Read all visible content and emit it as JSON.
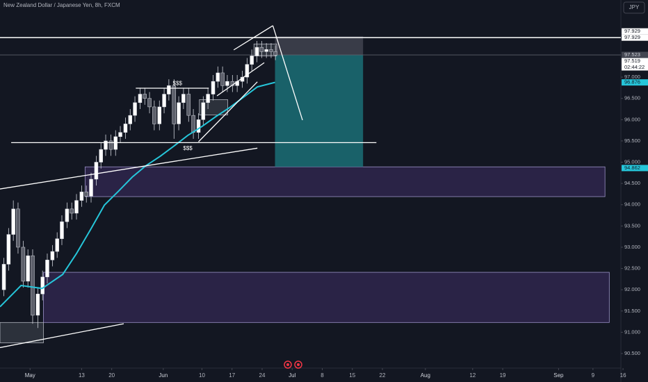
{
  "chart_data": {
    "type": "candlestick",
    "title": "New Zealand Dollar / Japanese Yen, 8h, FXCM",
    "currency_button": "JPY",
    "xlim": [
      -7,
      137.5
    ],
    "ylim": [
      90.157,
      98.814
    ],
    "yticks": [
      {
        "value": 97,
        "label": "97.000"
      },
      {
        "value": 96.5,
        "label": "96.500"
      },
      {
        "value": 96,
        "label": "96.000"
      },
      {
        "value": 95.5,
        "label": "95.500"
      },
      {
        "value": 95,
        "label": "95.000"
      },
      {
        "value": 94.5,
        "label": "94.500"
      },
      {
        "value": 94,
        "label": "94.000"
      },
      {
        "value": 93.5,
        "label": "93.500"
      },
      {
        "value": 93,
        "label": "93.000"
      },
      {
        "value": 92.5,
        "label": "92.500"
      },
      {
        "value": 92,
        "label": "92.000"
      },
      {
        "value": 91.5,
        "label": "91.500"
      },
      {
        "value": 91,
        "label": "91.000"
      },
      {
        "value": 90.5,
        "label": "90.500"
      }
    ],
    "xticks": [
      {
        "value": 0,
        "label": "May"
      },
      {
        "value": 12,
        "label": "13"
      },
      {
        "value": 19,
        "label": "20"
      },
      {
        "value": 31,
        "label": "Jun"
      },
      {
        "value": 40,
        "label": "10"
      },
      {
        "value": 47,
        "label": "17"
      },
      {
        "value": 54,
        "label": "24"
      },
      {
        "value": 61,
        "label": "Jul"
      },
      {
        "value": 68,
        "label": "8"
      },
      {
        "value": 75,
        "label": "15"
      },
      {
        "value": 82,
        "label": "22"
      },
      {
        "value": 92,
        "label": "Aug"
      },
      {
        "value": 103,
        "label": "12"
      },
      {
        "value": 110,
        "label": "19"
      },
      {
        "value": 123,
        "label": "Sep"
      },
      {
        "value": 131,
        "label": "9"
      },
      {
        "value": 138,
        "label": "16"
      }
    ],
    "up_color": "#ffffff",
    "down_color": "#5d606b",
    "candles": {
      "x": [
        -6.1,
        -5.0,
        -3.9,
        -2.8,
        -1.6,
        -0.5,
        0.6,
        1.8,
        2.9,
        4.0,
        5.2,
        6.3,
        7.4,
        8.6,
        9.7,
        10.8,
        12.0,
        13.1,
        14.2,
        15.4,
        16.5,
        17.6,
        18.8,
        19.9,
        21.0,
        22.2,
        23.3,
        24.4,
        25.6,
        26.7,
        27.8,
        28.9,
        30.1,
        31.2,
        32.3,
        33.5,
        34.6,
        35.7,
        36.9,
        38.0,
        39.2,
        40.3,
        41.4,
        42.6,
        43.7,
        44.8,
        45.9,
        47.1,
        48.2,
        49.4,
        50.5,
        51.6,
        52.8,
        53.9,
        55.0,
        56.1,
        57.1
      ],
      "open": [
        92.0,
        92.6,
        93.3,
        93.9,
        93.0,
        92.2,
        92.8,
        91.4,
        91.9,
        92.3,
        92.7,
        92.9,
        93.2,
        93.6,
        93.9,
        93.8,
        94.1,
        94.3,
        94.2,
        94.6,
        95.0,
        95.3,
        95.5,
        95.3,
        95.6,
        95.7,
        95.9,
        96.1,
        96.4,
        96.6,
        96.5,
        96.3,
        95.9,
        96.3,
        96.6,
        96.8,
        95.9,
        96.4,
        96.6,
        96.1,
        95.7,
        96.0,
        96.4,
        96.6,
        96.9,
        97.1,
        96.8,
        96.9,
        96.8,
        96.9,
        97.0,
        97.3,
        97.5,
        97.7,
        97.6,
        97.65,
        97.6
      ],
      "high": [
        92.75,
        93.45,
        94.1,
        94.05,
        93.15,
        92.95,
        92.95,
        92.05,
        92.45,
        92.85,
        93.05,
        93.35,
        93.75,
        94.05,
        94.05,
        94.25,
        94.45,
        94.45,
        94.75,
        95.15,
        95.45,
        95.65,
        95.65,
        95.75,
        95.85,
        96.05,
        96.25,
        96.55,
        96.75,
        96.75,
        96.65,
        96.45,
        96.45,
        96.75,
        96.95,
        96.95,
        96.55,
        96.75,
        96.75,
        96.25,
        96.15,
        96.55,
        96.75,
        97.05,
        97.25,
        97.25,
        97.05,
        97.05,
        97.05,
        97.15,
        97.45,
        97.65,
        97.85,
        97.85,
        97.8,
        97.8,
        97.75
      ],
      "low": [
        91.85,
        92.45,
        93.15,
        92.85,
        92.05,
        92.05,
        91.2,
        91.1,
        91.75,
        92.15,
        92.55,
        92.75,
        93.05,
        93.45,
        93.65,
        93.65,
        93.95,
        94.05,
        94.05,
        94.45,
        94.85,
        95.15,
        95.15,
        95.15,
        95.45,
        95.55,
        95.75,
        95.95,
        96.25,
        96.35,
        96.15,
        95.75,
        95.75,
        96.15,
        96.45,
        95.55,
        95.75,
        96.25,
        95.95,
        95.55,
        95.55,
        95.85,
        96.25,
        96.45,
        96.75,
        96.65,
        96.65,
        96.65,
        96.65,
        96.75,
        96.85,
        97.15,
        97.35,
        97.45,
        97.45,
        97.45,
        97.4
      ],
      "close": [
        92.6,
        93.3,
        93.9,
        93.0,
        92.2,
        92.8,
        91.4,
        91.9,
        92.3,
        92.7,
        92.9,
        93.2,
        93.6,
        93.9,
        93.8,
        94.1,
        94.3,
        94.2,
        94.6,
        95.0,
        95.3,
        95.5,
        95.3,
        95.6,
        95.7,
        95.9,
        96.1,
        96.4,
        96.6,
        96.5,
        96.3,
        95.9,
        96.3,
        96.6,
        96.8,
        95.9,
        96.4,
        96.6,
        96.1,
        95.7,
        96.0,
        96.4,
        96.6,
        96.9,
        97.1,
        96.8,
        96.9,
        96.8,
        96.9,
        97.0,
        97.3,
        97.5,
        97.7,
        97.6,
        97.65,
        97.6,
        97.52
      ]
    },
    "ema": {
      "color": "#26c6da",
      "x": [
        -7,
        -2.1,
        2.8,
        7.6,
        10.8,
        14.1,
        17.3,
        20.6,
        23.8,
        27,
        30.3,
        33.5,
        36.7,
        40,
        43.2,
        46.4,
        49.7,
        52.9,
        57
      ],
      "values": [
        91.6,
        92.1,
        92.03,
        92.36,
        92.85,
        93.42,
        93.99,
        94.32,
        94.65,
        94.92,
        95.14,
        95.38,
        95.63,
        95.84,
        96.07,
        96.28,
        96.53,
        96.77,
        96.876
      ]
    },
    "zones": [
      {
        "x": [
          12.8,
          133.8
        ],
        "y": [
          94.89,
          94.19
        ]
      },
      {
        "x": [
          3.1,
          134.8
        ],
        "y": [
          92.41,
          91.23
        ]
      }
    ],
    "position": {
      "x": [
        57.0,
        77.5
      ],
      "entry": 97.52,
      "stop": 97.96,
      "target": 94.89
    },
    "hlines": [
      97.929,
      97.523
    ],
    "lines": [
      {
        "x": [
          -4.4,
          80.6
        ],
        "y": [
          95.46,
          95.46
        ]
      },
      {
        "x": [
          -7,
          52.9
        ],
        "y": [
          94.37,
          95.33
        ]
      },
      {
        "x": [
          -7,
          21.8
        ],
        "y": [
          90.64,
          91.2
        ]
      },
      {
        "x": [
          24.6,
          41.6
        ],
        "y": [
          96.74,
          96.74
        ]
      },
      {
        "x": [
          39.2,
          52.9
        ],
        "y": [
          95.48,
          96.89
        ]
      },
      {
        "x": [
          43.5,
          54.5
        ],
        "y": [
          96.56,
          97.34
        ]
      },
      {
        "x": [
          47.4,
          56.5
        ],
        "y": [
          97.64,
          98.21
        ]
      },
      {
        "x": [
          56.5,
          63.4
        ],
        "y": [
          98.21,
          95.99
        ]
      }
    ],
    "boxes": [
      {
        "x": [
          39.4,
          46.0
        ],
        "y": [
          96.47,
          96.11
        ]
      },
      {
        "x": [
          52.1,
          57.4
        ],
        "y": [
          97.78,
          97.5
        ]
      },
      {
        "x": [
          -7,
          3.1
        ],
        "y": [
          91.23,
          90.75
        ]
      }
    ],
    "annotations": [
      {
        "text": "$$$",
        "x": 34.3,
        "y": 96.85
      },
      {
        "text": "$$$",
        "x": 36.7,
        "y": 95.32
      }
    ],
    "price_labels": [
      {
        "value": 97.929,
        "style": "white"
      },
      {
        "value": 97.929,
        "style": "white"
      },
      {
        "value": 97.523,
        "style": "gray"
      },
      {
        "value": 97.519,
        "style": "white"
      },
      {
        "value": 96.876,
        "style": "cyan"
      },
      {
        "value": 94.862,
        "style": "cyan"
      }
    ],
    "countdown": "02:44:22"
  }
}
